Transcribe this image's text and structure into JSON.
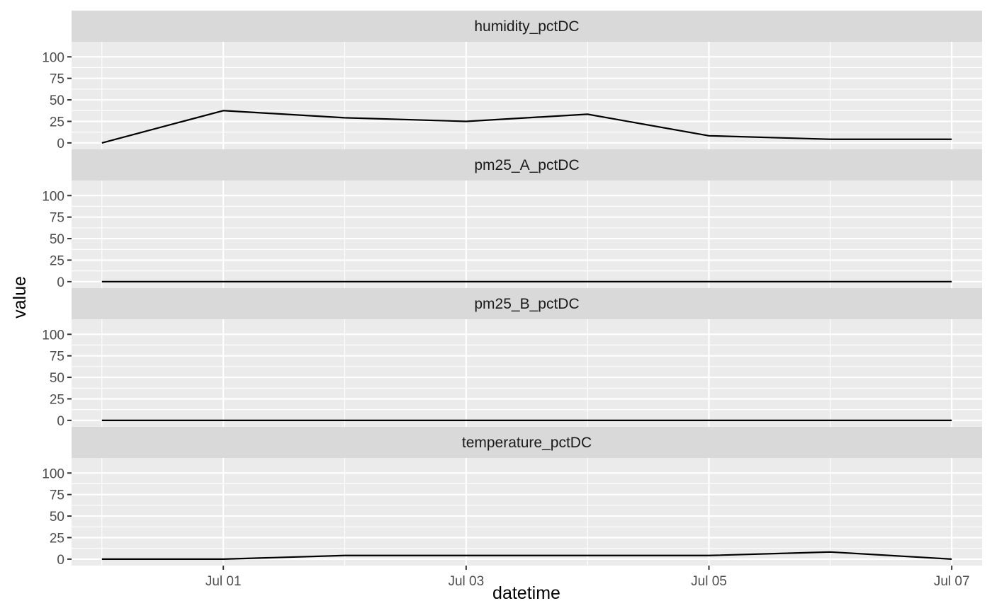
{
  "chart_data": {
    "type": "line",
    "facet_layout": "vertical",
    "xlabel": "datetime",
    "ylabel": "value",
    "x": [
      "2022-06-30",
      "2022-07-01",
      "2022-07-02",
      "2022-07-03",
      "2022-07-04",
      "2022-07-05",
      "2022-07-06",
      "2022-07-07"
    ],
    "x_ticks": [
      {
        "value": "2022-07-01",
        "label": "Jul 01"
      },
      {
        "value": "2022-07-03",
        "label": "Jul 03"
      },
      {
        "value": "2022-07-05",
        "label": "Jul 05"
      },
      {
        "value": "2022-07-07",
        "label": "Jul 07"
      }
    ],
    "xlim": [
      "2022-06-29T18:00",
      "2022-07-07T06:00"
    ],
    "ylim": [
      -7.5,
      117.5
    ],
    "y_ticks": [
      0,
      25,
      50,
      75,
      100
    ],
    "grid": true,
    "line_color": "#000000",
    "panel_background": "#ebebeb",
    "strip_background": "#d9d9d9",
    "grid_color": "#ffffff",
    "series": [
      {
        "name": "humidity_pctDC",
        "values": [
          0,
          37.5,
          29.2,
          25,
          33.3,
          8.3,
          4.2,
          4.2
        ]
      },
      {
        "name": "pm25_A_pctDC",
        "values": [
          0,
          0,
          0,
          0,
          0,
          0,
          0,
          0
        ]
      },
      {
        "name": "pm25_B_pctDC",
        "values": [
          0,
          0,
          0,
          0,
          0,
          0,
          0,
          0
        ]
      },
      {
        "name": "temperature_pctDC",
        "values": [
          0,
          0,
          4.2,
          4.2,
          4.2,
          4.2,
          8.3,
          0
        ]
      }
    ]
  }
}
